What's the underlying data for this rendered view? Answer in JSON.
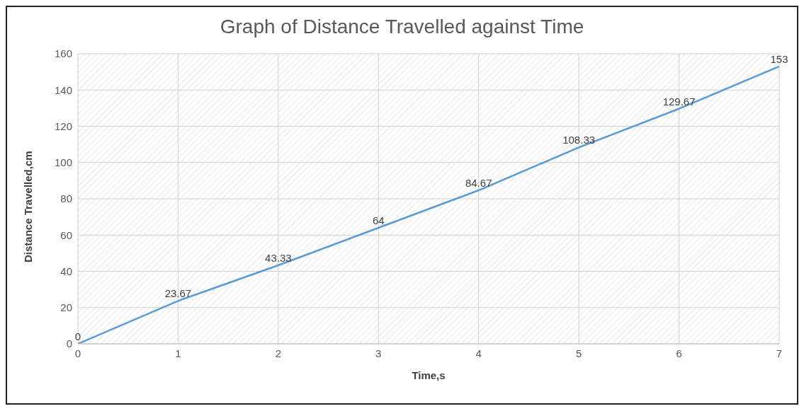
{
  "chart_data": {
    "type": "line",
    "title": "Graph of Distance Travelled against Time",
    "xlabel": "Time,s",
    "ylabel": "Distance Travelled,cm",
    "x": [
      0,
      1,
      2,
      3,
      4,
      5,
      6,
      7
    ],
    "series": [
      {
        "color": "#5b9bd5",
        "values": [
          0,
          23.67,
          43.33,
          64,
          84.67,
          108.33,
          129.67,
          153
        ]
      }
    ],
    "xlim": [
      0,
      7
    ],
    "xticks": [
      0,
      1,
      2,
      3,
      4,
      5,
      6,
      7
    ],
    "ylim": [
      0,
      160
    ],
    "yticks": [
      0,
      20,
      40,
      60,
      80,
      100,
      120,
      140,
      160
    ],
    "grid": true,
    "marker": "none",
    "line_style": "solid",
    "data_labels": true
  }
}
